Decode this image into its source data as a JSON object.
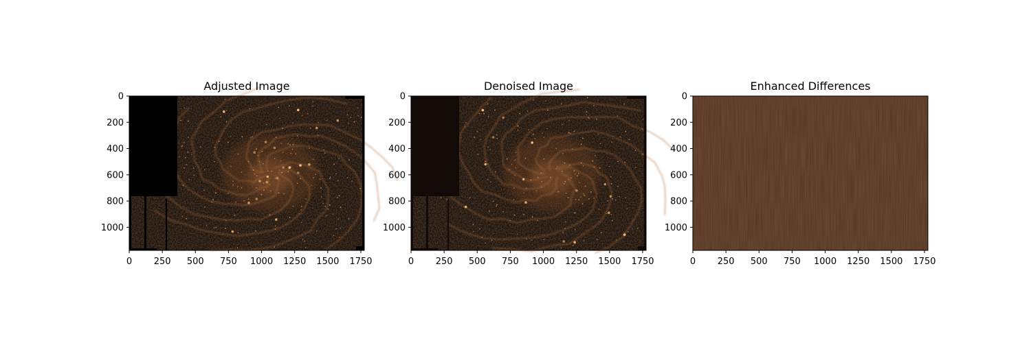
{
  "chart_data": [
    {
      "type": "heatmap",
      "title": "Adjusted Image",
      "variant": "adjusted",
      "xlim": [
        0,
        1776
      ],
      "ylim": [
        1176,
        0
      ],
      "xticks": [
        0,
        250,
        500,
        750,
        1000,
        1250,
        1500,
        1750
      ],
      "yticks": [
        0,
        200,
        400,
        600,
        800,
        1000
      ],
      "colormap": "copper",
      "colors": {
        "low": "#000000",
        "high": "#ffc77f"
      }
    },
    {
      "type": "heatmap",
      "title": "Denoised Image",
      "variant": "denoised",
      "xlim": [
        0,
        1776
      ],
      "ylim": [
        1176,
        0
      ],
      "xticks": [
        0,
        250,
        500,
        750,
        1000,
        1250,
        1500,
        1750
      ],
      "yticks": [
        0,
        200,
        400,
        600,
        800,
        1000
      ],
      "colormap": "copper",
      "colors": {
        "low": "#120a06",
        "high": "#ffc77f"
      }
    },
    {
      "type": "heatmap",
      "title": "Enhanced Differences",
      "variant": "difference",
      "xlim": [
        0,
        1776
      ],
      "ylim": [
        1176,
        0
      ],
      "xticks": [
        0,
        250,
        500,
        750,
        1000,
        1250,
        1500,
        1750
      ],
      "yticks": [
        0,
        200,
        400,
        600,
        800,
        1000
      ],
      "colormap": "copper",
      "colors": {
        "fill": "#5a3a25"
      }
    }
  ]
}
